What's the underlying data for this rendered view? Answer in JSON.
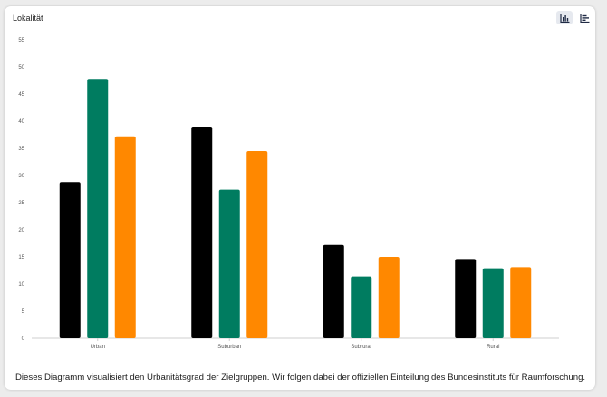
{
  "card": {
    "title": "Lokalität",
    "caption": "Dieses Diagramm visualisiert den Urbanitätsgrad der Zielgruppen. Wir folgen dabei der offiziellen Einteilung des Bundesinstituts für Raumforschung."
  },
  "toolbar": {
    "column_chart_icon": "column-chart-icon",
    "bar_chart_icon": "bar-chart-icon",
    "active": "column"
  },
  "chart_data": {
    "type": "bar",
    "categories": [
      "Urban",
      "Suburban",
      "Subrural",
      "Rural"
    ],
    "series": [
      {
        "values": [
          28.8,
          39.0,
          17.2,
          14.6
        ],
        "color": "#000000"
      },
      {
        "values": [
          47.8,
          27.4,
          11.4,
          12.9
        ],
        "color": "#007c60"
      },
      {
        "values": [
          37.2,
          34.5,
          15.0,
          13.1
        ],
        "color": "#ff8800"
      }
    ],
    "yticks": [
      0,
      5,
      10,
      15,
      20,
      25,
      30,
      35,
      40,
      45,
      50,
      55
    ],
    "ylim": [
      0,
      55
    ],
    "xlabel": "",
    "ylabel": "",
    "grid": false
  }
}
